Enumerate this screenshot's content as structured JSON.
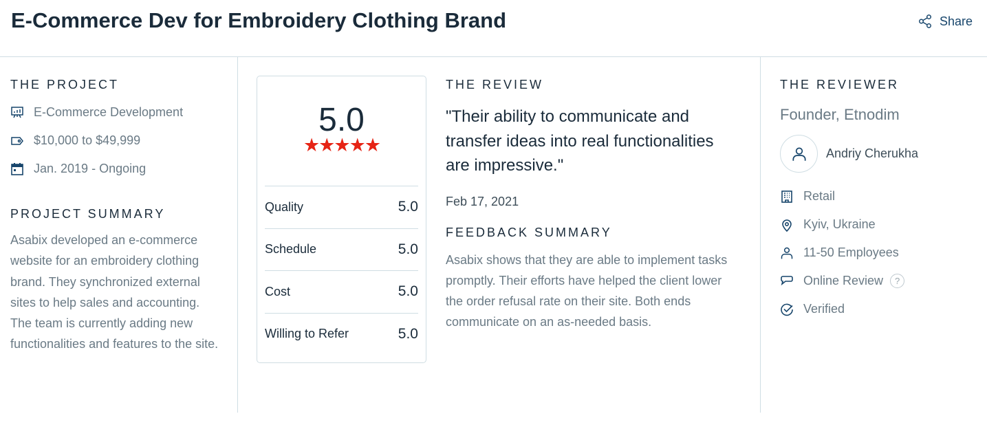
{
  "header": {
    "title": "E-Commerce Dev for Embroidery Clothing Brand",
    "share_label": "Share"
  },
  "project": {
    "heading": "THE PROJECT",
    "items": [
      {
        "icon": "presentation-chart-icon",
        "text": "E-Commerce Development"
      },
      {
        "icon": "price-tag-icon",
        "text": "$10,000 to $49,999"
      },
      {
        "icon": "calendar-icon",
        "text": "Jan. 2019 - Ongoing"
      }
    ],
    "summary_heading": "PROJECT SUMMARY",
    "summary": "Asabix developed an e-commerce website for an embroidery clothing brand. They synchronized external sites to help sales and accounting. The team is currently adding new functionalities and features to the site."
  },
  "rating": {
    "overall": "5.0",
    "stars": 5,
    "star_color": "#e62415",
    "rows": [
      {
        "label": "Quality",
        "value": "5.0"
      },
      {
        "label": "Schedule",
        "value": "5.0"
      },
      {
        "label": "Cost",
        "value": "5.0"
      },
      {
        "label": "Willing to Refer",
        "value": "5.0"
      }
    ]
  },
  "review": {
    "heading": "THE REVIEW",
    "quote": "\"Their ability to communicate and transfer ideas into real functionalities are impressive.\"",
    "date": "Feb 17, 2021",
    "feedback_heading": "FEEDBACK SUMMARY",
    "feedback": "Asabix shows that they are able to implement tasks promptly. Their efforts have helped the client lower the order refusal rate on their site. Both ends communicate on an as-needed basis."
  },
  "reviewer": {
    "heading": "THE REVIEWER",
    "role": "Founder, Etnodim",
    "name": "Andriy Cherukha",
    "items": [
      {
        "icon": "building-icon",
        "text": "Retail"
      },
      {
        "icon": "location-pin-icon",
        "text": "Kyiv, Ukraine"
      },
      {
        "icon": "person-icon",
        "text": "11-50 Employees"
      },
      {
        "icon": "speech-bubble-icon",
        "text": "Online Review"
      },
      {
        "icon": "check-circle-icon",
        "text": "Verified"
      }
    ],
    "help_glyph": "?"
  },
  "colors": {
    "icon": "#17456b",
    "text_muted": "#6a7a85",
    "border": "#cfdde3"
  }
}
